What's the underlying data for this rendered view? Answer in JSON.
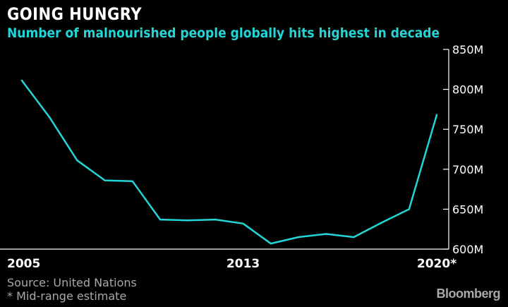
{
  "header": {
    "title": "GOING HUNGRY",
    "subtitle": "Number of malnourished people globally hits highest in decade"
  },
  "footer": {
    "source": "Source: United Nations",
    "note": "* Mid-range estimate",
    "brand": "Bloomberg"
  },
  "colors": {
    "background": "#000000",
    "line": "#23d5d7",
    "text": "#ffffff",
    "muted": "#a8a8a8"
  },
  "chart_data": {
    "type": "line",
    "title": "GOING HUNGRY",
    "subtitle": "Number of malnourished people globally hits highest in decade",
    "xlabel": "",
    "ylabel": "",
    "x": [
      2005,
      2006,
      2007,
      2008,
      2009,
      2010,
      2011,
      2012,
      2013,
      2014,
      2015,
      2016,
      2017,
      2018,
      2019,
      2020
    ],
    "series": [
      {
        "values": [
          811,
          765,
          711,
          686,
          685,
          637,
          636,
          637,
          632,
          607,
          615,
          619,
          615,
          633,
          650,
          768
        ]
      }
    ],
    "xlim": [
      2005,
      2020
    ],
    "ylim": [
      600,
      850
    ],
    "x_tick_labels": [
      {
        "value": 2005,
        "label": "2005"
      },
      {
        "value": 2013,
        "label": "2013"
      },
      {
        "value": 2020,
        "label": "2020*"
      }
    ],
    "y_ticks": [
      600,
      650,
      700,
      750,
      800,
      850
    ],
    "y_tick_labels": [
      "600M",
      "650M",
      "700M",
      "750M",
      "800M",
      "850M"
    ],
    "y_axis_side": "right",
    "grid": false,
    "legend": "none"
  }
}
